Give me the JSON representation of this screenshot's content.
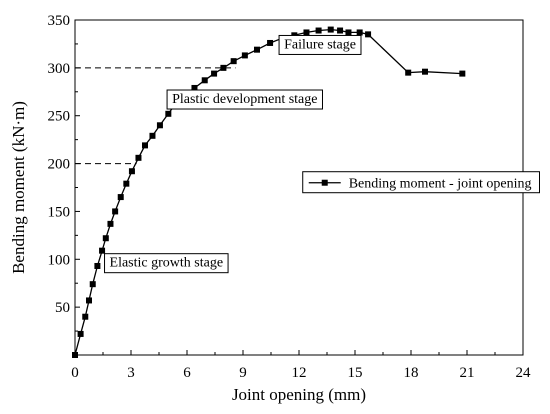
{
  "chart_data": {
    "type": "line",
    "title": "",
    "xlabel": "Joint opening (mm)",
    "ylabel": "Bending moment (kN·m)",
    "xlim": [
      0,
      24
    ],
    "ylim": [
      0,
      350
    ],
    "xticks": [
      0,
      3,
      6,
      9,
      12,
      15,
      18,
      21,
      24
    ],
    "yticks": [
      50,
      100,
      150,
      200,
      250,
      300,
      350
    ],
    "grid": false,
    "legend_placement": "right",
    "series": [
      {
        "name": "Bending moment - joint opening",
        "color": "#000000",
        "marker": "square",
        "x": [
          0.0,
          0.3,
          0.55,
          0.75,
          0.95,
          1.2,
          1.45,
          1.65,
          1.9,
          2.15,
          2.45,
          2.75,
          3.05,
          3.4,
          3.75,
          4.15,
          4.55,
          5.0,
          5.45,
          5.95,
          6.4,
          6.95,
          7.45,
          7.95,
          8.5,
          9.1,
          9.75,
          10.45,
          11.1,
          11.75,
          12.4,
          13.05,
          13.7,
          14.2,
          14.65,
          15.25,
          15.7,
          17.85,
          18.75,
          20.75
        ],
        "y": [
          0,
          22,
          40,
          57,
          74,
          93,
          109,
          122,
          137,
          150,
          165,
          179,
          192,
          206,
          219,
          229,
          240,
          252,
          264,
          273,
          279,
          287,
          294,
          300,
          307,
          313,
          319,
          326,
          331,
          334,
          337,
          339,
          340,
          339,
          337,
          337,
          335,
          295,
          296,
          294
        ]
      }
    ],
    "reference_lines": [
      {
        "y": 300,
        "x_from": 0,
        "x_to": 8.6,
        "style": "dashed"
      },
      {
        "y": 200,
        "x_from": 0,
        "x_to": 3.3,
        "style": "dashed"
      }
    ],
    "annotations": [
      {
        "id": "failure",
        "text": "Failure stage"
      },
      {
        "id": "plastic",
        "text": "Plastic development stage"
      },
      {
        "id": "elastic",
        "text": "Elastic growth stage"
      }
    ]
  }
}
